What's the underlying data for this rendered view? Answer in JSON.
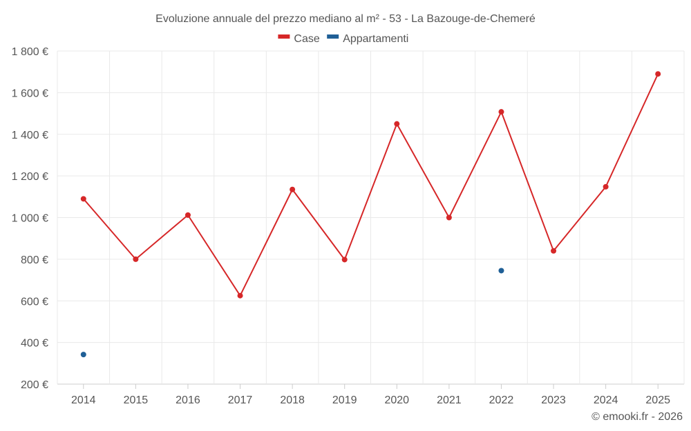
{
  "chart_data": {
    "type": "line",
    "title": "Evoluzione annuale del prezzo mediano al m² - 53 - La Bazouge-de-Chemeré",
    "xlabel": "",
    "ylabel": "",
    "categories": [
      "2014",
      "2015",
      "2016",
      "2017",
      "2018",
      "2019",
      "2020",
      "2021",
      "2022",
      "2023",
      "2024",
      "2025"
    ],
    "y_ticks": [
      200,
      400,
      600,
      800,
      1000,
      1200,
      1400,
      1600,
      1800
    ],
    "y_tick_labels": [
      "200 €",
      "400 €",
      "600 €",
      "800 €",
      "1 000 €",
      "1 200 €",
      "1 400 €",
      "1 600 €",
      "1 800 €"
    ],
    "ylim": [
      200,
      1800
    ],
    "grid": true,
    "legend_position": "top-center",
    "series": [
      {
        "name": "Case",
        "color": "#d62728",
        "values": [
          1090,
          800,
          1012,
          625,
          1135,
          798,
          1450,
          1000,
          1508,
          840,
          1148,
          1690
        ]
      },
      {
        "name": "Appartamenti",
        "color": "#1f5f96",
        "values": [
          342,
          null,
          null,
          null,
          null,
          null,
          null,
          null,
          745,
          null,
          null,
          null
        ]
      }
    ],
    "credit": "© emooki.fr - 2026"
  }
}
